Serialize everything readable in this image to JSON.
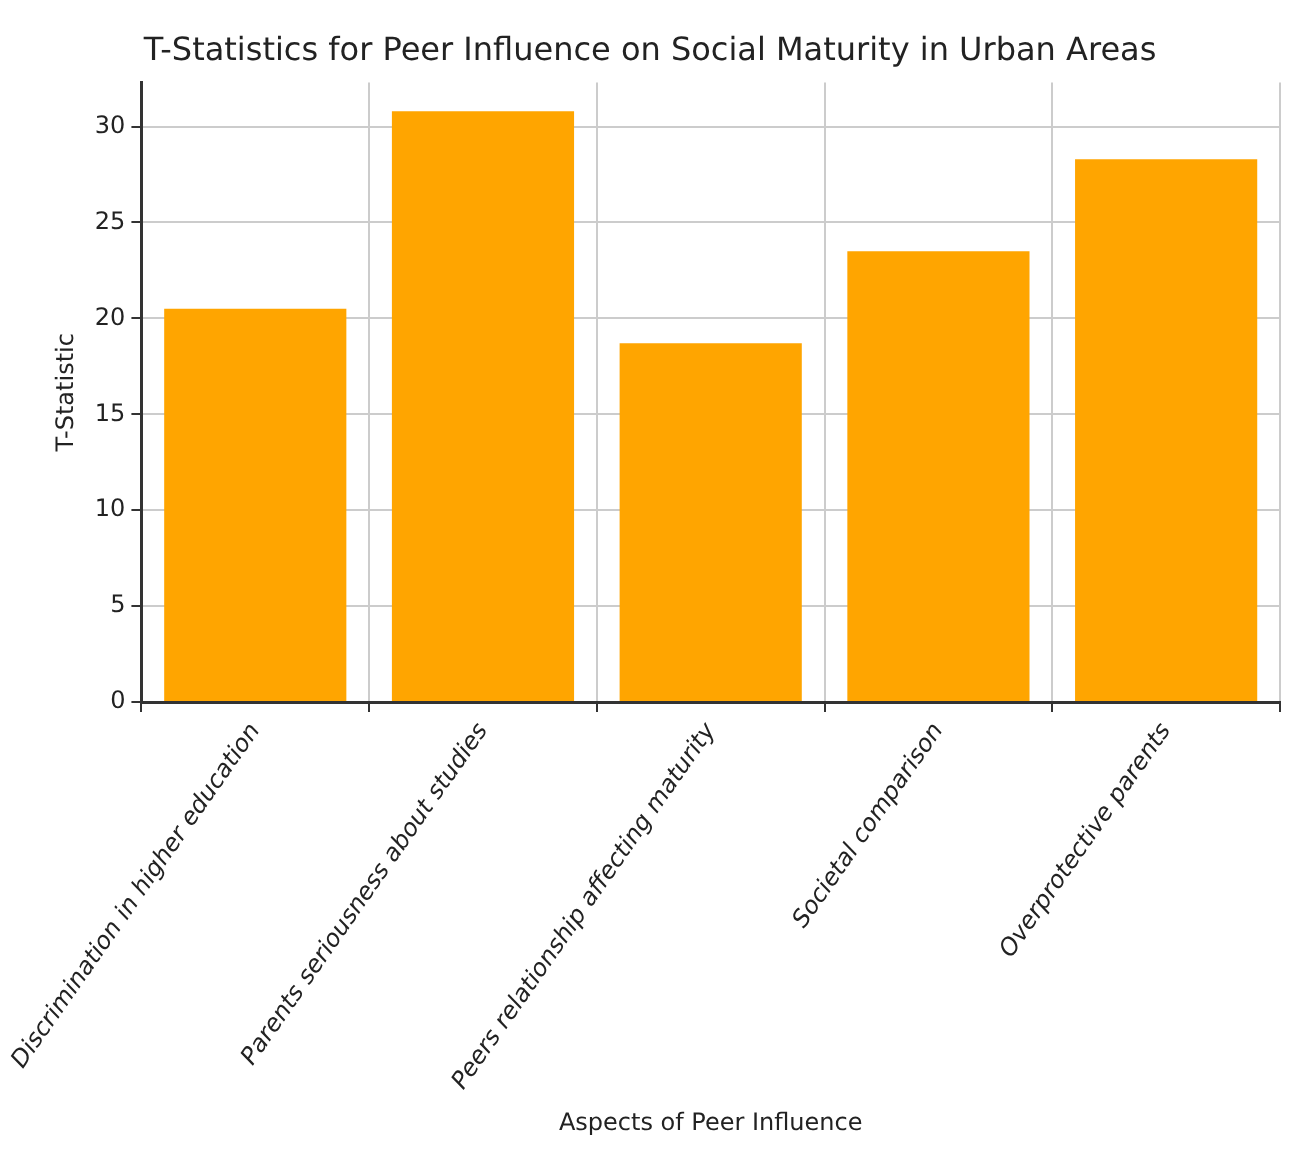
{
  "chart_data": {
    "type": "bar",
    "title": "T-Statistics for Peer Influence on Social Maturity in Urban Areas",
    "xlabel": "Aspects of Peer Influence",
    "ylabel": "T-Statistic",
    "categories": [
      "Discrimination in higher education",
      "Parents seriousness about studies",
      "Peers relationship affecting maturity",
      "Societal comparison",
      "Overprotective parents"
    ],
    "values": [
      20.5,
      30.8,
      18.7,
      23.5,
      28.3
    ],
    "color": "#ffa500",
    "ylim": [
      0,
      32.3
    ],
    "yticks": [
      0,
      5,
      10,
      15,
      20,
      25,
      30
    ],
    "grid": true
  }
}
